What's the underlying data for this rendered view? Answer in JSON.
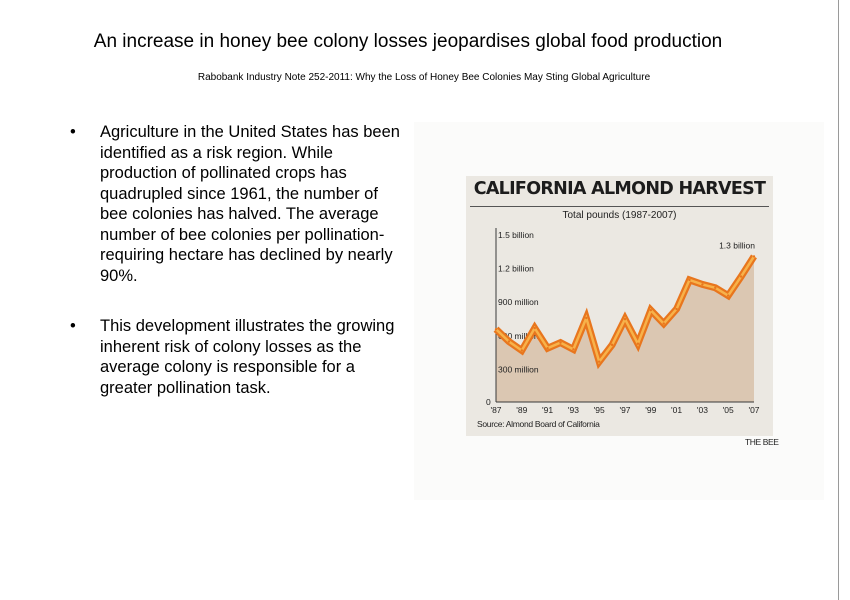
{
  "slide": {
    "title": "An increase in honey bee colony losses jeopardises global food production",
    "subtitle": "Rabobank Industry Note 252-2011: Why the Loss of Honey Bee Colonies May Sting Global Agriculture",
    "bullet_symbol": "•",
    "bullets": [
      "Agriculture in the United States has been identified as a risk region. While production of pollinated crops has quadrupled since 1961, the number of bee colonies has halved. The average number of bee colonies per pollination-requiring hectare has declined by nearly 90%.",
      "This development illustrates the growing inherent risk of colony losses as the average colony is responsible for a greater pollination task."
    ]
  },
  "chart_data": {
    "type": "area",
    "title": "CALIFORNIA ALMOND HARVEST",
    "subtitle": "Total pounds (1987-2007)",
    "source": "Source: Almond Board of California",
    "credit": "THE BEE",
    "x": [
      1987,
      1988,
      1989,
      1990,
      1991,
      1992,
      1993,
      1994,
      1995,
      1996,
      1997,
      1998,
      1999,
      2000,
      2001,
      2002,
      2003,
      2004,
      2005,
      2006,
      2007
    ],
    "series": [
      {
        "values": [
          650,
          540,
          460,
          660,
          480,
          530,
          470,
          750,
          360,
          510,
          740,
          520,
          820,
          700,
          830,
          1090,
          1050,
          1020,
          950,
          1120,
          1300
        ]
      }
    ],
    "x_tick_labels": [
      "'87",
      "'89",
      "'91",
      "'93",
      "'95",
      "'97",
      "'99",
      "'01",
      "'03",
      "'05",
      "'07"
    ],
    "y_ticks": [
      {
        "value": 0,
        "label": "0"
      },
      {
        "value": 300,
        "label": "300 million"
      },
      {
        "value": 600,
        "label": "600 million"
      },
      {
        "value": 900,
        "label": "900 million"
      },
      {
        "value": 1200,
        "label": "1.2 billion"
      },
      {
        "value": 1500,
        "label": "1.5 billion"
      }
    ],
    "ylim": [
      0,
      1500
    ],
    "grid": false,
    "annotations": [
      {
        "x": 2007,
        "y": 1300,
        "text": "1.3 billion"
      }
    ],
    "colors": {
      "card": "#ebe8e2",
      "area": "#dbc7b2",
      "line_outer": "#e8761e",
      "line_inner": "#f7b24a",
      "axis": "#3a3a3a"
    }
  }
}
